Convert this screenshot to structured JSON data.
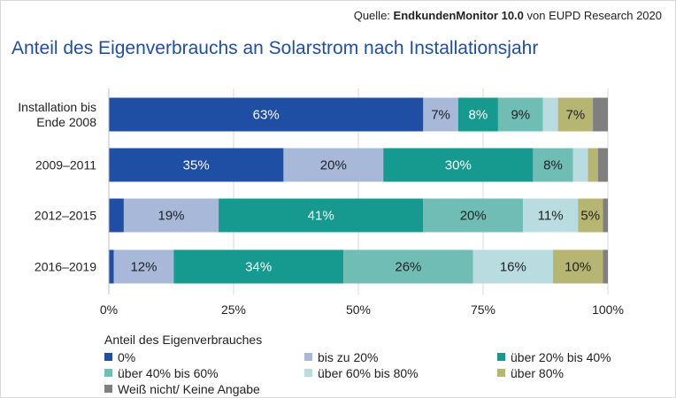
{
  "header": {
    "source_prefix": "Quelle:",
    "source_strong": "EndkundenMonitor 10.0",
    "source_suffix": "von EUPD Research 2020"
  },
  "chart_data": {
    "type": "bar",
    "orientation": "horizontal",
    "stacked": true,
    "title": "Anteil des Eigenverbrauchs an Solarstrom nach Installationsjahr",
    "categories": [
      [
        "Installation bis",
        "Ende 2008"
      ],
      [
        "2009–2011"
      ],
      [
        "2012–2015"
      ],
      [
        "2016–2019"
      ]
    ],
    "series": [
      {
        "name": "0%",
        "color": "#1f4fa5",
        "label_color": "#ffffff",
        "values": [
          63,
          35,
          3,
          1
        ]
      },
      {
        "name": "bis zu 20%",
        "color": "#a7b8d9",
        "label_color": "#222222",
        "values": [
          7,
          20,
          19,
          12
        ]
      },
      {
        "name": "über 20% bis 40%",
        "color": "#169a8f",
        "label_color": "#ffffff",
        "values": [
          8,
          30,
          41,
          34
        ]
      },
      {
        "name": "über 40% bis 60%",
        "color": "#70bdb6",
        "label_color": "#222222",
        "values": [
          9,
          8,
          20,
          26
        ]
      },
      {
        "name": "über 60% bis 80%",
        "color": "#b9dce0",
        "label_color": "#222222",
        "values": [
          3,
          3,
          11,
          16
        ]
      },
      {
        "name": "über 80%",
        "color": "#b7b572",
        "label_color": "#222222",
        "values": [
          7,
          2,
          5,
          10
        ]
      },
      {
        "name": "Weiß nicht/ Keine Angabe",
        "color": "#7f7f7f",
        "label_color": "#222222",
        "values": [
          3,
          2,
          1,
          1
        ]
      }
    ],
    "data_labels": [
      [
        "63%",
        "7%",
        "8%",
        "9%",
        "",
        "7%",
        ""
      ],
      [
        "35%",
        "20%",
        "30%",
        "8%",
        "",
        "",
        ""
      ],
      [
        "",
        "19%",
        "41%",
        "20%",
        "11%",
        "5%",
        ""
      ],
      [
        "",
        "12%",
        "34%",
        "26%",
        "16%",
        "10%",
        ""
      ]
    ],
    "xlim": [
      0,
      100
    ],
    "x_ticks": [
      0,
      25,
      50,
      75,
      100
    ],
    "x_tick_labels": [
      "0%",
      "25%",
      "50%",
      "75%",
      "100%"
    ],
    "grid": true,
    "legend_title": "Anteil des Eigenverbrauches",
    "legend_position": "bottom"
  }
}
